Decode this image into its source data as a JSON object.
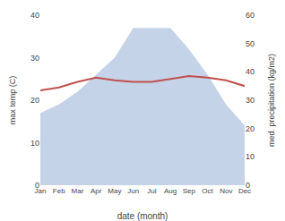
{
  "chart_data": {
    "type": "line",
    "xlabel": "date (month)",
    "ylabel": "max temp (C)",
    "y2label": "med. precipitation (kg/m2)",
    "categories": [
      "Jan",
      "Feb",
      "Mar",
      "Apr",
      "May",
      "Jun",
      "Jul",
      "Aug",
      "Sep",
      "Oct",
      "Nov",
      "Dec"
    ],
    "series": [
      {
        "type": "area",
        "color": "#c5d3e8",
        "values": [
          17,
          19,
          22,
          26,
          30,
          37,
          37,
          37,
          32,
          26,
          19,
          14
        ]
      },
      {
        "type": "line",
        "color": "#c0504d",
        "axis": "y2",
        "values": [
          33.5,
          34.5,
          36.5,
          38.0,
          37.0,
          36.5,
          36.5,
          37.5,
          38.5,
          38.0,
          37.0,
          35.0
        ]
      }
    ],
    "ylim": [
      0,
      40
    ],
    "yticks": [
      0,
      10,
      20,
      30,
      40
    ],
    "y2lim": [
      0,
      60
    ],
    "y2ticks": [
      0,
      10,
      20,
      30,
      40,
      50,
      60
    ],
    "grid": false
  }
}
